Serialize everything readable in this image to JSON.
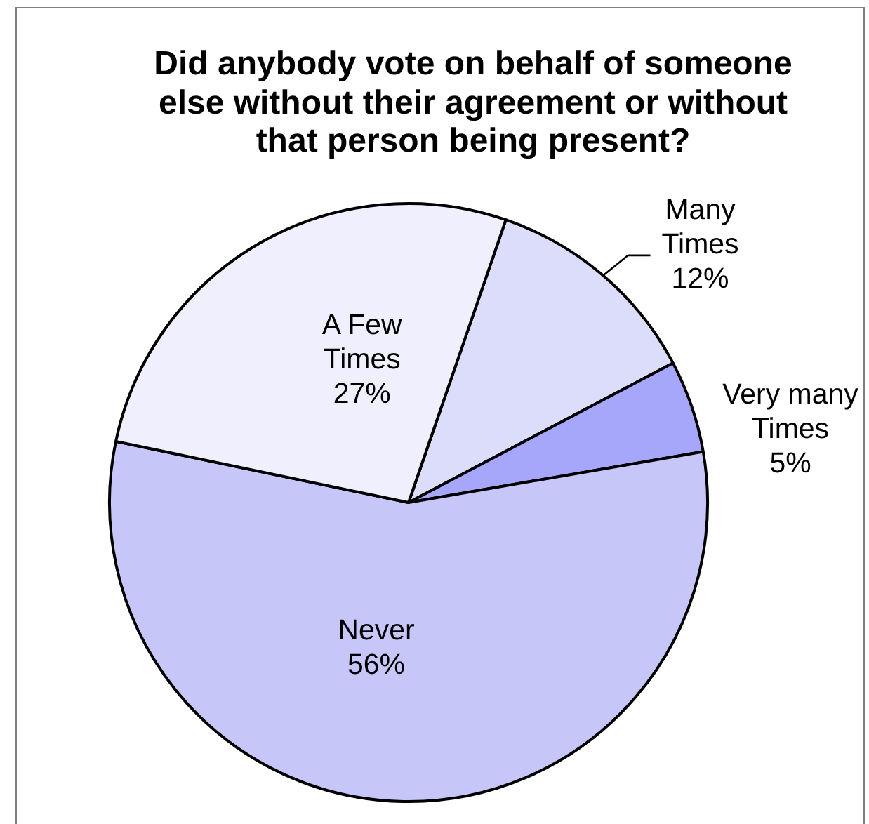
{
  "chart_data": {
    "type": "pie",
    "title": "Did anybody vote on behalf of someone else without their agreement or without that person being present?",
    "categories": [
      "Many Times",
      "Very many Times",
      "Never",
      "A Few Times"
    ],
    "values": [
      12,
      5,
      56,
      27
    ],
    "value_labels": [
      "12%",
      "5%",
      "56%",
      "27%"
    ],
    "colors": [
      "#dcdcfb",
      "#a6a6fa",
      "#c6c6f8",
      "#efeffd"
    ],
    "legend": false
  }
}
